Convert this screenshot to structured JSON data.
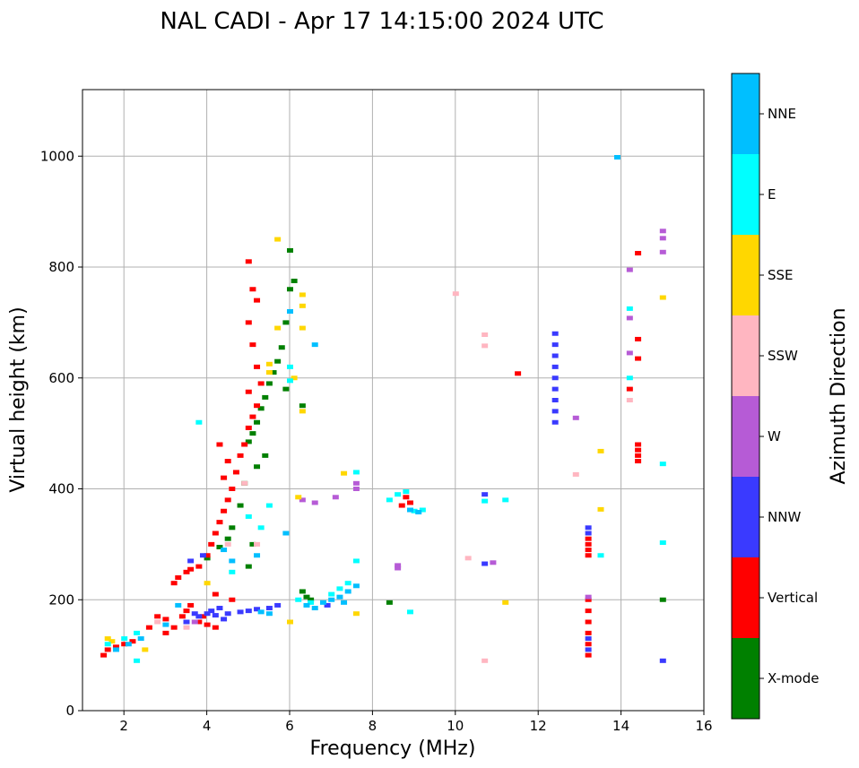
{
  "chart_data": {
    "type": "scatter",
    "title": "NAL CADI - Apr 17 14:15:00 2024 UTC",
    "xlabel": "Frequency (MHz)",
    "ylabel": "Virtual height (km)",
    "xlim": [
      1,
      16
    ],
    "ylim": [
      0,
      1120
    ],
    "xticks": [
      2,
      4,
      6,
      8,
      10,
      12,
      14,
      16
    ],
    "yticks": [
      0,
      200,
      400,
      600,
      800,
      1000
    ],
    "grid": true,
    "colorbar": {
      "label": "Azimuth Direction",
      "categories": [
        {
          "name": "X-mode",
          "color": "#008000"
        },
        {
          "name": "Vertical",
          "color": "#ff0000"
        },
        {
          "name": "NNW",
          "color": "#3a3aff"
        },
        {
          "name": "W",
          "color": "#b65bd6"
        },
        {
          "name": "SSW",
          "color": "#ffb6c1"
        },
        {
          "name": "SSE",
          "color": "#ffd700"
        },
        {
          "name": "E",
          "color": "#00ffff"
        },
        {
          "name": "NNE",
          "color": "#00bfff"
        }
      ]
    },
    "series": [
      {
        "name": "X-mode",
        "points": [
          [
            5.0,
            485
          ],
          [
            5.1,
            500
          ],
          [
            5.2,
            520
          ],
          [
            5.3,
            545
          ],
          [
            5.4,
            565
          ],
          [
            5.5,
            590
          ],
          [
            5.6,
            610
          ],
          [
            5.7,
            630
          ],
          [
            5.8,
            655
          ],
          [
            5.9,
            700
          ],
          [
            6.0,
            760
          ],
          [
            6.1,
            775
          ],
          [
            6.0,
            830
          ],
          [
            5.4,
            460
          ],
          [
            5.2,
            440
          ],
          [
            4.9,
            410
          ],
          [
            4.8,
            370
          ],
          [
            4.6,
            330
          ],
          [
            4.5,
            310
          ],
          [
            4.3,
            295
          ],
          [
            4.0,
            275
          ],
          [
            6.3,
            215
          ],
          [
            6.4,
            205
          ],
          [
            6.5,
            200
          ],
          [
            8.4,
            195
          ],
          [
            15.0,
            200
          ],
          [
            6.3,
            550
          ],
          [
            5.9,
            580
          ],
          [
            5.1,
            300
          ],
          [
            5.0,
            260
          ]
        ]
      },
      {
        "name": "Vertical",
        "points": [
          [
            1.5,
            100
          ],
          [
            1.6,
            110
          ],
          [
            1.8,
            115
          ],
          [
            2.0,
            120
          ],
          [
            2.2,
            125
          ],
          [
            2.6,
            150
          ],
          [
            3.0,
            165
          ],
          [
            3.2,
            150
          ],
          [
            3.4,
            170
          ],
          [
            3.5,
            180
          ],
          [
            3.6,
            190
          ],
          [
            3.8,
            260
          ],
          [
            3.6,
            255
          ],
          [
            3.5,
            250
          ],
          [
            3.3,
            240
          ],
          [
            3.2,
            230
          ],
          [
            4.0,
            280
          ],
          [
            4.1,
            300
          ],
          [
            4.2,
            320
          ],
          [
            4.3,
            340
          ],
          [
            4.4,
            360
          ],
          [
            4.5,
            380
          ],
          [
            4.6,
            400
          ],
          [
            4.7,
            430
          ],
          [
            4.8,
            460
          ],
          [
            4.9,
            480
          ],
          [
            5.0,
            510
          ],
          [
            5.1,
            530
          ],
          [
            5.2,
            550
          ],
          [
            5.0,
            575
          ],
          [
            5.3,
            590
          ],
          [
            5.2,
            620
          ],
          [
            5.1,
            660
          ],
          [
            5.0,
            700
          ],
          [
            5.2,
            740
          ],
          [
            5.1,
            760
          ],
          [
            5.0,
            810
          ],
          [
            4.3,
            480
          ],
          [
            4.5,
            450
          ],
          [
            4.4,
            420
          ],
          [
            3.8,
            160
          ],
          [
            4.0,
            155
          ],
          [
            4.2,
            150
          ],
          [
            3.9,
            170
          ],
          [
            8.9,
            375
          ],
          [
            8.8,
            385
          ],
          [
            8.7,
            370
          ],
          [
            13.2,
            300
          ],
          [
            13.2,
            290
          ],
          [
            13.2,
            280
          ],
          [
            13.2,
            310
          ],
          [
            13.2,
            100
          ],
          [
            13.2,
            120
          ],
          [
            13.2,
            140
          ],
          [
            13.2,
            160
          ],
          [
            13.2,
            180
          ],
          [
            13.2,
            200
          ],
          [
            14.4,
            450
          ],
          [
            14.4,
            460
          ],
          [
            14.4,
            470
          ],
          [
            14.4,
            480
          ],
          [
            14.4,
            635
          ],
          [
            14.4,
            670
          ],
          [
            14.4,
            825
          ],
          [
            11.5,
            608
          ],
          [
            14.2,
            580
          ],
          [
            3.0,
            140
          ],
          [
            2.8,
            170
          ],
          [
            4.6,
            200
          ],
          [
            4.2,
            210
          ]
        ]
      },
      {
        "name": "NNW",
        "points": [
          [
            3.5,
            160
          ],
          [
            3.8,
            170
          ],
          [
            4.0,
            175
          ],
          [
            4.2,
            172
          ],
          [
            4.5,
            175
          ],
          [
            4.8,
            178
          ],
          [
            5.0,
            180
          ],
          [
            5.2,
            183
          ],
          [
            5.5,
            185
          ],
          [
            5.7,
            190
          ],
          [
            4.3,
            185
          ],
          [
            4.1,
            180
          ],
          [
            3.7,
            175
          ],
          [
            4.4,
            165
          ],
          [
            12.4,
            520
          ],
          [
            12.4,
            540
          ],
          [
            12.4,
            560
          ],
          [
            12.4,
            580
          ],
          [
            12.4,
            600
          ],
          [
            12.4,
            620
          ],
          [
            12.4,
            640
          ],
          [
            12.4,
            660
          ],
          [
            12.4,
            680
          ],
          [
            13.2,
            330
          ],
          [
            13.2,
            320
          ],
          [
            13.2,
            110
          ],
          [
            13.2,
            130
          ],
          [
            15.0,
            90
          ],
          [
            10.7,
            390
          ],
          [
            10.7,
            265
          ],
          [
            6.9,
            190
          ],
          [
            3.6,
            270
          ],
          [
            3.9,
            280
          ]
        ]
      },
      {
        "name": "W",
        "points": [
          [
            8.6,
            262
          ],
          [
            8.6,
            257
          ],
          [
            7.6,
            410
          ],
          [
            7.6,
            400
          ],
          [
            6.3,
            380
          ],
          [
            6.6,
            375
          ],
          [
            7.1,
            385
          ],
          [
            12.9,
            528
          ],
          [
            13.2,
            205
          ],
          [
            14.2,
            795
          ],
          [
            14.2,
            708
          ],
          [
            14.2,
            645
          ],
          [
            15.0,
            865
          ],
          [
            15.0,
            852
          ],
          [
            15.0,
            827
          ],
          [
            10.9,
            267
          ],
          [
            3.7,
            160
          ]
        ]
      },
      {
        "name": "SSW",
        "points": [
          [
            4.9,
            410
          ],
          [
            5.2,
            300
          ],
          [
            4.5,
            300
          ],
          [
            10.0,
            752
          ],
          [
            10.7,
            678
          ],
          [
            10.7,
            658
          ],
          [
            10.3,
            275
          ],
          [
            10.7,
            90
          ],
          [
            12.9,
            426
          ],
          [
            14.2,
            560
          ],
          [
            2.8,
            160
          ],
          [
            3.5,
            150
          ]
        ]
      },
      {
        "name": "SSE",
        "points": [
          [
            1.6,
            130
          ],
          [
            1.7,
            125
          ],
          [
            2.5,
            110
          ],
          [
            5.5,
            610
          ],
          [
            5.5,
            625
          ],
          [
            6.1,
            600
          ],
          [
            6.3,
            540
          ],
          [
            6.3,
            690
          ],
          [
            6.3,
            730
          ],
          [
            6.3,
            750
          ],
          [
            5.7,
            850
          ],
          [
            5.7,
            690
          ],
          [
            6.0,
            160
          ],
          [
            6.2,
            385
          ],
          [
            7.3,
            428
          ],
          [
            7.6,
            175
          ],
          [
            11.2,
            195
          ],
          [
            13.5,
            468
          ],
          [
            13.5,
            363
          ],
          [
            15.0,
            745
          ],
          [
            4.0,
            230
          ]
        ]
      },
      {
        "name": "E",
        "points": [
          [
            1.6,
            120
          ],
          [
            2.0,
            130
          ],
          [
            2.3,
            140
          ],
          [
            3.8,
            520
          ],
          [
            5.0,
            350
          ],
          [
            5.3,
            330
          ],
          [
            5.5,
            370
          ],
          [
            6.0,
            595
          ],
          [
            6.0,
            620
          ],
          [
            6.2,
            200
          ],
          [
            6.5,
            195
          ],
          [
            7.0,
            210
          ],
          [
            7.2,
            220
          ],
          [
            7.4,
            230
          ],
          [
            7.6,
            270
          ],
          [
            7.6,
            430
          ],
          [
            8.4,
            380
          ],
          [
            8.6,
            390
          ],
          [
            8.8,
            395
          ],
          [
            9.0,
            360
          ],
          [
            9.2,
            362
          ],
          [
            10.7,
            378
          ],
          [
            11.2,
            380
          ],
          [
            13.5,
            280
          ],
          [
            14.2,
            725
          ],
          [
            14.2,
            600
          ],
          [
            15.0,
            445
          ],
          [
            15.0,
            303
          ],
          [
            8.9,
            178
          ],
          [
            2.3,
            90
          ],
          [
            4.6,
            250
          ]
        ]
      },
      {
        "name": "NNE",
        "points": [
          [
            1.8,
            110
          ],
          [
            2.1,
            120
          ],
          [
            2.4,
            130
          ],
          [
            3.0,
            155
          ],
          [
            3.3,
            190
          ],
          [
            4.4,
            290
          ],
          [
            4.6,
            270
          ],
          [
            5.2,
            280
          ],
          [
            6.4,
            190
          ],
          [
            6.6,
            185
          ],
          [
            6.8,
            195
          ],
          [
            7.0,
            200
          ],
          [
            7.2,
            205
          ],
          [
            7.4,
            215
          ],
          [
            7.6,
            225
          ],
          [
            6.6,
            660
          ],
          [
            6.0,
            720
          ],
          [
            7.3,
            195
          ],
          [
            8.9,
            362
          ],
          [
            9.1,
            358
          ],
          [
            13.9,
            998
          ],
          [
            5.9,
            320
          ],
          [
            5.5,
            175
          ],
          [
            5.3,
            178
          ]
        ]
      }
    ]
  }
}
